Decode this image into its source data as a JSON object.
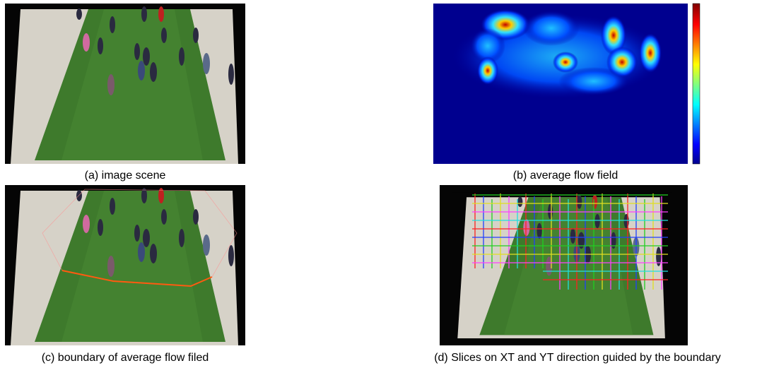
{
  "figure": {
    "panels": [
      {
        "caption": "(a) image scene"
      },
      {
        "caption": "(b) average flow field"
      },
      {
        "caption": "(c) boundary of average flow filed"
      },
      {
        "caption": "(d) Slices on XT and YT direction guided by the boundary"
      }
    ]
  }
}
